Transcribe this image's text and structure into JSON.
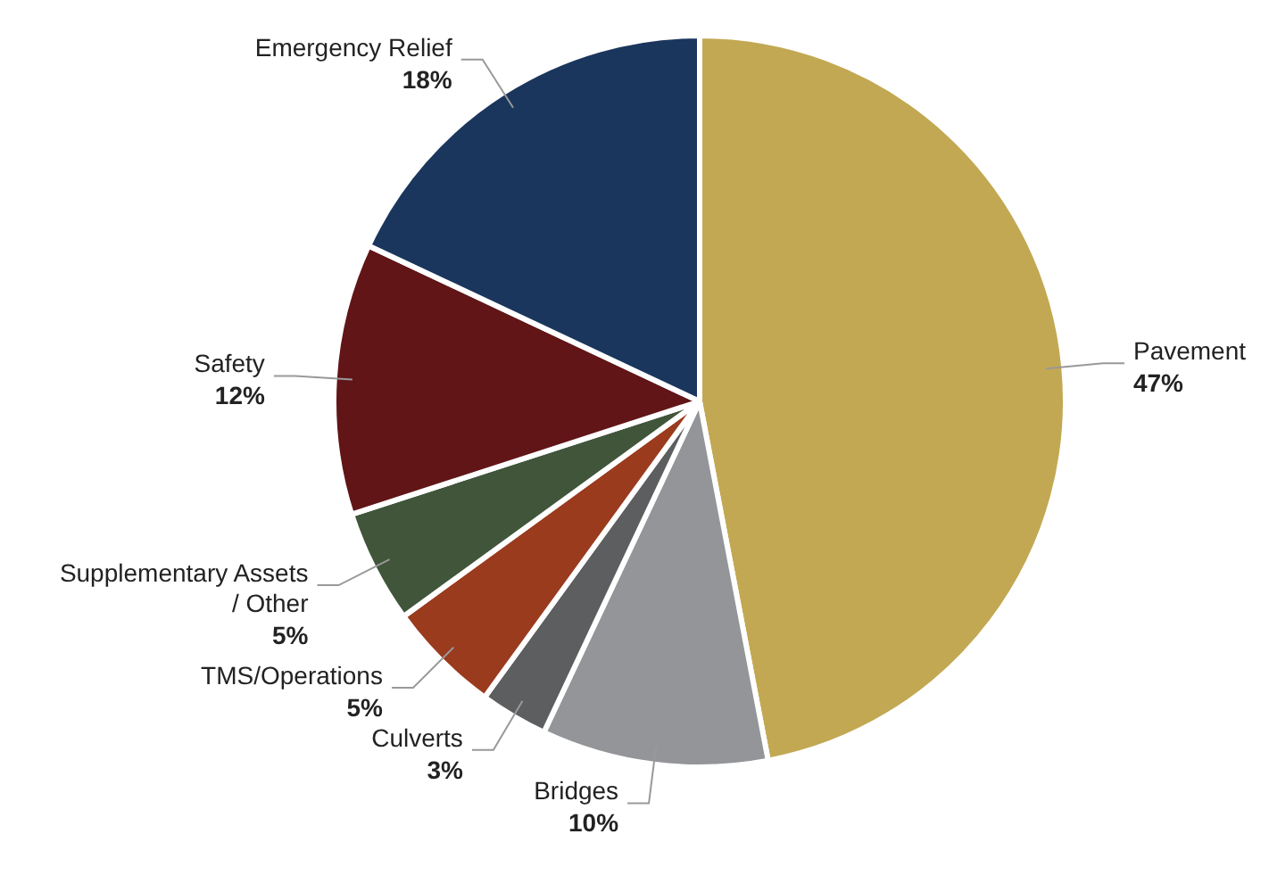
{
  "chart_data": {
    "type": "pie",
    "categories": [
      "Pavement",
      "Bridges",
      "Culverts",
      "TMS/Operations",
      "Supplementary Assets / Other",
      "Safety",
      "Emergency Relief"
    ],
    "values": [
      47,
      10,
      3,
      5,
      5,
      12,
      18
    ],
    "value_labels": [
      "47%",
      "10%",
      "3%",
      "5%",
      "5%",
      "12%",
      "18%"
    ],
    "colors": [
      "#c2a853",
      "#939598",
      "#5d5e60",
      "#9a3b1e",
      "#40553a",
      "#611517",
      "#1b365d"
    ]
  }
}
